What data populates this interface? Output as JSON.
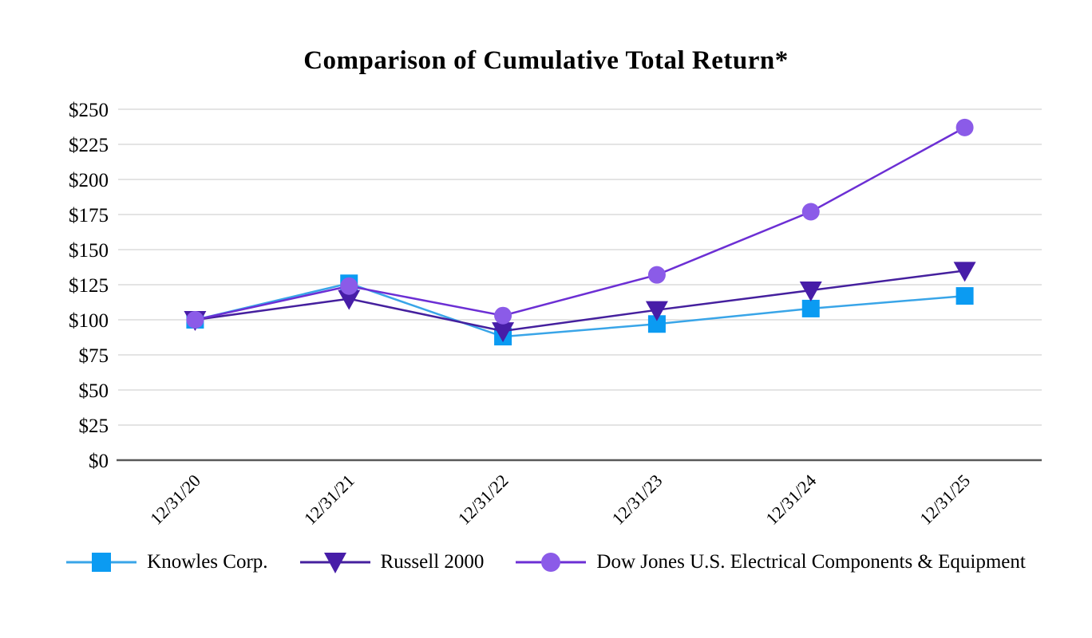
{
  "page": {
    "background": "#FFFFFF"
  },
  "title": "Comparison of Cumulative Total Return*",
  "chart_data": {
    "type": "line",
    "title": "Comparison of Cumulative Total Return*",
    "x_categories": [
      "12/31/20",
      "12/31/21",
      "12/31/22",
      "12/31/23",
      "12/31/24",
      "12/31/25"
    ],
    "series": [
      {
        "name": "Knowles Corp.",
        "marker": "square",
        "marker_color": "#0B9BF2",
        "line_color": "#39A5E8",
        "values": [
          100,
          126,
          88,
          97,
          108,
          117
        ]
      },
      {
        "name": "Russell 2000",
        "marker": "triangle-down",
        "marker_color": "#471DA8",
        "line_color": "#45209E",
        "values": [
          100,
          115,
          92,
          107,
          121,
          135
        ]
      },
      {
        "name": "Dow Jones U.S. Electrical Components & Equipment",
        "marker": "circle",
        "marker_color": "#8B5BE8",
        "line_color": "#6C2FD4",
        "values": [
          100,
          124,
          103,
          132,
          177,
          237
        ]
      }
    ],
    "xlabel": "",
    "ylabel": "",
    "ylim": [
      0,
      250
    ],
    "ytick_step": 25,
    "y_tick_labels": [
      "$0",
      "$25",
      "$50",
      "$75",
      "$100",
      "$125",
      "$150",
      "$175",
      "$200",
      "$225",
      "$250"
    ],
    "grid": "horizontal",
    "grid_color": "#DBDBDB",
    "axis_color": "#595959",
    "legend_position": "bottom"
  }
}
